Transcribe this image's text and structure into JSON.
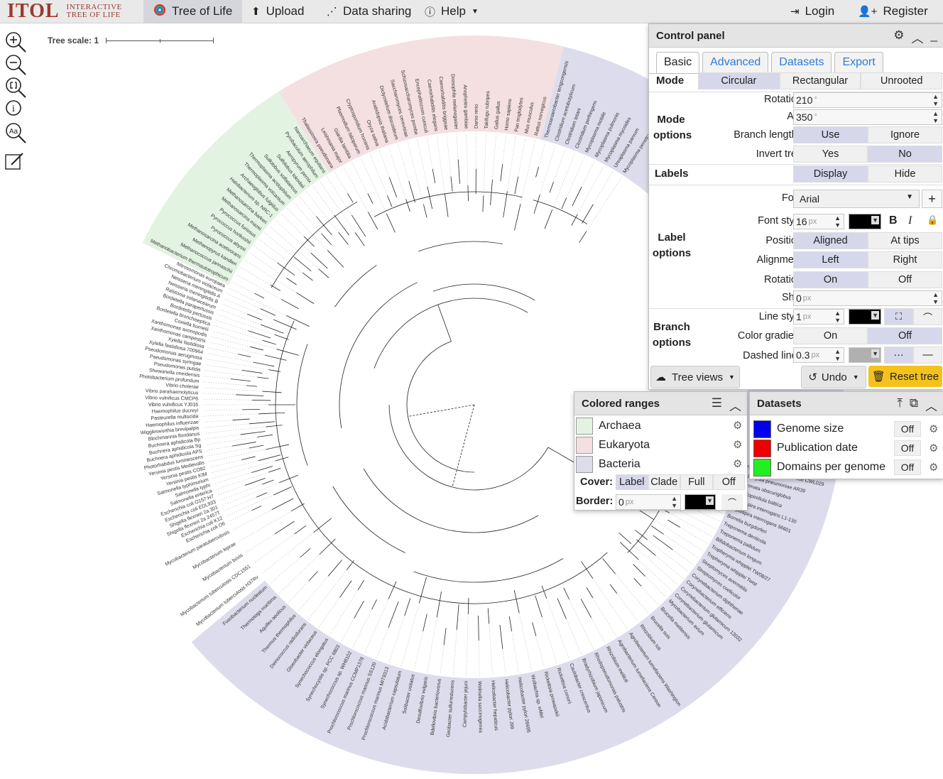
{
  "nav": {
    "logo_main": "ITOL",
    "logo_sub1": "Interactive",
    "logo_sub2": "Tree Of Life",
    "tree_of_life": "Tree of Life",
    "upload": "Upload",
    "data_sharing": "Data sharing",
    "help": "Help",
    "login": "Login",
    "register": "Register"
  },
  "tree_scale": "Tree scale: 1",
  "clade_colors": {
    "archaea": "#e3f3e2",
    "eukaryota": "#f4dfe1",
    "bacteria": "#dcdcec"
  },
  "labels": {
    "archaea": [
      "Methanobacterium thermautotrophicum",
      "Methanococcus jannaschii",
      "Methanopyrus kandleri",
      "Methanosarcina acetivorans",
      "Pyrococcus abyssi",
      "Pyrococcus horikoshii",
      "Pyrococcus furiosus",
      "Methanosarcina mazei",
      "Methanosarcina barkeri",
      "Halobacterium sp. NRC-1",
      "Archaeoglobus fulgidus",
      "Thermoplasma volcanium",
      "Thermoplasma acidophilum",
      "Sulfolobus solfataricus",
      "Sulfolobus tokodaii",
      "Aeropyrum pernix",
      "Pyrobaculum aerophilum",
      "Nanoarchaeum equitans"
    ],
    "eukaryota": [
      "Thalassiosira pseudonana",
      "Leishmania major",
      "Giardia lamblia",
      "Plasmodium falciparum",
      "Cryptosporidium hominis",
      "Oryza sativa",
      "Arabidopsis thaliana",
      "Dictyostelium discoideum",
      "Saccharomyces cerevisiae",
      "Schizosaccharomyces pombe",
      "Encephalitozoon cuniculi",
      "Caenorhabditis elegans",
      "Caenorhabditis briggsae",
      "Drosophila melanogaster",
      "Anopheles gambiae",
      "Danio rerio",
      "Takifugu rubripes",
      "Gallus gallus",
      "Homo sapiens",
      "Pan troglodytes",
      "Mus musculus",
      "Rattus norvegicus"
    ],
    "bacteria_top": [
      "Thermoanaerobacter tengcongensis",
      "Clostridium acetobutylicum",
      "Clostridium tetani",
      "Clostridium perfringens",
      "Mycoplasma mobile",
      "Mycoplasma pulmonis",
      "Mycoplasma mycoides",
      "Ureaplasma parvum",
      "Mycoplasma penetrans"
    ],
    "bacteria_left": [
      "Escherichia coli O6",
      "Escherichia coli K12",
      "Shigella flexneri 2a 2457T",
      "Shigella flexneri 2a 301",
      "Escherichia coli EDL933",
      "Escherichia coli O157:H7",
      "Salmonella enterica",
      "Salmonella typhi",
      "Salmonella typhimurium",
      "Yersinia pestis KIM",
      "Yersinia pestis CO92",
      "Yersinia pestis Medievalis",
      "Photorhabdus luminescens",
      "Buchnera aphidicola APS",
      "Buchnera aphidicola Sg",
      "Buchnera aphidicola Bp",
      "Blochmannia floridanus",
      "Wigglesworthia brevipalpis",
      "Haemophilus influenzae",
      "Pasteurella multocida",
      "Haemophilus ducreyi",
      "Vibrio vulnificus YJ016",
      "Vibrio vulnificus CMCP6",
      "Vibrio parahaemolyticus",
      "Vibrio cholerae",
      "Photobacterium profundum",
      "Shewanella oneidensis",
      "Pseudomonas putida",
      "Pseudomonas syringae",
      "Pseudomonas aeruginosa",
      "Xylella fastidiosa 700964",
      "Xylella fastidiosa",
      "Xanthomonas campestris",
      "Xanthomonas axonopodis",
      "Coxiella burnetii",
      "Bordetella bronchiseptica",
      "Bordetella pertussis",
      "Bordetella parapertussis",
      "Ralstonia solanacearum",
      "Neisseria meningitidis B",
      "Neisseria meningitidis A",
      "Chromobacterium violaceum",
      "Nitrosomonas europaea"
    ],
    "bacteria_bottom": [
      "Brucella melitensis",
      "Brucella suis",
      "Rhizobium loti",
      "Agrobacterium tumefaciens Washington",
      "Agrobacterium tumefaciens Cereon",
      "Rhizobium meliloti",
      "Rhodopseudomonas palustris",
      "Bradyrhizobium japonicum",
      "Caulobacter crescentus",
      "Rickettsia conorii",
      "Rickettsia prowazekii",
      "Wolbachia sp. wMel",
      "Helicobacter pylori 26695",
      "Helicobacter pylori J99",
      "Helicobacter hepaticus",
      "Wolinella succinogenes",
      "Campylobacter jejuni",
      "Geobacter sulfurreducens",
      "Bdellovibrio bacteriovorus",
      "Desulfovibrio vulgaris",
      "Solibacter usitatus",
      "Acidobacterium capsulatum",
      "Prochlorococcus marinus MIT9313",
      "Prochlorococcus marinus SS120",
      "Prochlorococcus marinus CCMP1378",
      "Synechococcus sp. WH8102",
      "Synechocystis sp. PCC 6803",
      "Synechococcus elongatus",
      "Gloeobacter violaceus",
      "Deinococcus radiodurans",
      "Thermus thermophilus",
      "Aquifex aeolicus",
      "Thermotoga maritima",
      "Fusobacterium nucleatum",
      "Mycobacterium tuberculosis H37Rv",
      "Mycobacterium tuberculosis CDC1551",
      "Mycobacterium bovis",
      "Mycobacterium leprae",
      "Mycobacterium paratuberculosis"
    ],
    "bacteria_right": [
      "Chlamydophila pneumoniae CWL029",
      "Chlamydia pneumoniae AR39",
      "Gemmata obscuriglobus",
      "Rhodopirellula baltica",
      "Leptospira interrogans L1-130",
      "Leptospira interrogans 56601",
      "Borrelia burgdorferi",
      "Treponema denticola",
      "Treponema pallidum",
      "Bifidobacterium longum",
      "Tropheryma whipplei TW08/27",
      "Tropheryma whipplei Twist",
      "Streptomyces avermitilis",
      "Streptomyces coelicolor",
      "Corynebacterium diphtheriae",
      "Corynebacterium efficiens",
      "Corynebacterium glutamicum 13032",
      "Corynebacterium glutamicum",
      "Mycobacterium avium"
    ],
    "hidden_partial": "Fibrobacter succinogenes"
  },
  "control_panel": {
    "title": "Control panel",
    "tabs": [
      "Basic",
      "Advanced",
      "Datasets",
      "Export"
    ],
    "mode_label": "Mode",
    "modes": [
      "Circular",
      "Rectangular",
      "Unrooted"
    ],
    "mode_selected": "Circular",
    "mode_options_label": "Mode options",
    "rotation_label": "Rotation:",
    "rotation_value": "210",
    "arc_label": "Arc:",
    "arc_value": "350",
    "degree": "°",
    "branch_lengths_label": "Branch lengths:",
    "use": "Use",
    "ignore": "Ignore",
    "invert_label": "Invert tree:",
    "yes": "Yes",
    "no": "No",
    "labels_label": "Labels",
    "display": "Display",
    "hide": "Hide",
    "label_options_label": "Label options",
    "font_label": "Font:",
    "font_value": "Arial",
    "font_style_label": "Font style:",
    "font_size": "16",
    "px": "px",
    "bold": "B",
    "italic": "I",
    "position_label": "Position:",
    "aligned": "Aligned",
    "at_tips": "At tips",
    "alignment_label": "Alignment:",
    "left": "Left",
    "right": "Right",
    "label_rotation_label": "Rotation:",
    "on": "On",
    "off": "Off",
    "shift_label": "Shift:",
    "shift_value": "0",
    "branch_options_label": "Branch options",
    "line_style_label": "Line style:",
    "line_width": "1",
    "color_gradient_label": "Color gradient:",
    "dashed_lines_label": "Dashed lines:",
    "dashed_value": "0.3",
    "dashed_color": "#b0b0b0",
    "tree_views": "Tree views",
    "undo": "Undo",
    "reset_tree": "Reset tree",
    "reset_color": "#f3c21c"
  },
  "colored_ranges": {
    "title": "Colored ranges",
    "items": [
      {
        "label": "Archaea",
        "color": "#e3f3e2"
      },
      {
        "label": "Eukaryota",
        "color": "#f4dfe1"
      },
      {
        "label": "Bacteria",
        "color": "#dcdcec"
      }
    ],
    "cover_label": "Cover:",
    "cover_options": [
      "Label",
      "Clade",
      "Full",
      "Off"
    ],
    "cover_selected": "Label",
    "border_label": "Border:",
    "border_value": "0",
    "px": "px"
  },
  "datasets": {
    "title": "Datasets",
    "items": [
      {
        "label": "Genome size",
        "color": "#0000ee",
        "state": "Off"
      },
      {
        "label": "Publication date",
        "color": "#ee0000",
        "state": "Off"
      },
      {
        "label": "Domains per genome",
        "color": "#22ee22",
        "state": "Off"
      }
    ]
  }
}
